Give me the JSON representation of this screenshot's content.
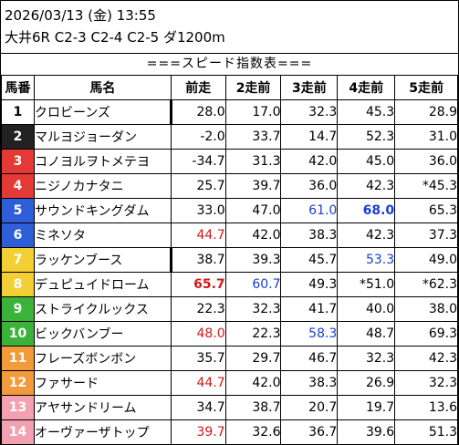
{
  "header": {
    "datetime": "2026/03/13 (金) 13:55",
    "race": "大井6R C2-3 C2-4 C2-5 ダ1200m"
  },
  "subtitle": "===スピード指数表===",
  "columns": [
    "馬番",
    "馬名",
    "前走",
    "2走前",
    "3走前",
    "4走前",
    "5走前"
  ],
  "colors": {
    "red_text": "#d11a1a",
    "blue_text": "#1a3fd1"
  },
  "rows": [
    {
      "num": "1",
      "name": "クロビーンズ",
      "bg": "#ffffff",
      "fg": "#000000",
      "sep": true,
      "vals": [
        "28.0",
        "17.0",
        "32.3",
        "45.3",
        "28.9"
      ],
      "styles": [
        "",
        "",
        "",
        "",
        ""
      ]
    },
    {
      "num": "2",
      "name": "マルヨジョーダン",
      "bg": "#222222",
      "fg": "#ffffff",
      "sep": false,
      "vals": [
        "-2.0",
        "33.7",
        "14.7",
        "52.3",
        "31.0"
      ],
      "styles": [
        "",
        "",
        "",
        "",
        ""
      ]
    },
    {
      "num": "3",
      "name": "コノヨルヲトメテヨ",
      "bg": "#e53935",
      "fg": "#ffffff",
      "sep": false,
      "vals": [
        "-34.7",
        "31.3",
        "42.0",
        "45.0",
        "36.0"
      ],
      "styles": [
        "",
        "",
        "",
        "",
        ""
      ]
    },
    {
      "num": "4",
      "name": "ニジノカナタニ",
      "bg": "#e53935",
      "fg": "#ffffff",
      "sep": false,
      "vals": [
        "25.7",
        "39.7",
        "36.0",
        "42.3",
        "*45.3"
      ],
      "styles": [
        "",
        "",
        "",
        "",
        ""
      ]
    },
    {
      "num": "5",
      "name": "サウンドキングダム",
      "bg": "#2f5fd8",
      "fg": "#ffffff",
      "sep": false,
      "vals": [
        "33.0",
        "47.0",
        "61.0",
        "68.0",
        "65.3"
      ],
      "styles": [
        "",
        "",
        "blue",
        "blue bold",
        ""
      ]
    },
    {
      "num": "6",
      "name": "ミネソタ",
      "bg": "#2f5fd8",
      "fg": "#ffffff",
      "sep": false,
      "vals": [
        "44.7",
        "42.0",
        "38.3",
        "42.3",
        "37.3"
      ],
      "styles": [
        "red",
        "",
        "",
        "",
        ""
      ]
    },
    {
      "num": "7",
      "name": "ラッケンブース",
      "bg": "#f2d033",
      "fg": "#ffffff",
      "sep": true,
      "vals": [
        "38.7",
        "39.3",
        "45.7",
        "53.3",
        "49.0"
      ],
      "styles": [
        "",
        "",
        "",
        "blue",
        ""
      ]
    },
    {
      "num": "8",
      "name": "デュピュイドローム",
      "bg": "#f2d033",
      "fg": "#ffffff",
      "sep": false,
      "vals": [
        "65.7",
        "60.7",
        "49.3",
        "*51.0",
        "*62.3"
      ],
      "styles": [
        "red bold",
        "blue",
        "",
        "",
        ""
      ]
    },
    {
      "num": "9",
      "name": "ストライクルックス",
      "bg": "#3bb33b",
      "fg": "#ffffff",
      "sep": false,
      "vals": [
        "22.3",
        "32.3",
        "41.7",
        "40.0",
        "38.0"
      ],
      "styles": [
        "",
        "",
        "",
        "",
        ""
      ]
    },
    {
      "num": "10",
      "name": "ビックバンブー",
      "bg": "#3bb33b",
      "fg": "#ffffff",
      "sep": false,
      "vals": [
        "48.0",
        "22.3",
        "58.3",
        "48.7",
        "69.3"
      ],
      "styles": [
        "red",
        "",
        "blue",
        "",
        ""
      ]
    },
    {
      "num": "11",
      "name": "フレーズボンボン",
      "bg": "#f39a3a",
      "fg": "#ffffff",
      "sep": false,
      "vals": [
        "35.7",
        "29.7",
        "46.7",
        "32.3",
        "42.3"
      ],
      "styles": [
        "",
        "",
        "",
        "",
        ""
      ]
    },
    {
      "num": "12",
      "name": "ファサード",
      "bg": "#f39a3a",
      "fg": "#ffffff",
      "sep": false,
      "vals": [
        "44.7",
        "42.0",
        "38.3",
        "26.9",
        "32.3"
      ],
      "styles": [
        "red",
        "",
        "",
        "",
        ""
      ]
    },
    {
      "num": "13",
      "name": "アヤサンドリーム",
      "bg": "#f3a0b0",
      "fg": "#ffffff",
      "sep": false,
      "vals": [
        "34.7",
        "38.7",
        "20.7",
        "19.7",
        "13.6"
      ],
      "styles": [
        "",
        "",
        "",
        "",
        ""
      ]
    },
    {
      "num": "14",
      "name": "オーヴァーザトップ",
      "bg": "#f3a0b0",
      "fg": "#ffffff",
      "sep": false,
      "vals": [
        "39.7",
        "32.6",
        "36.7",
        "39.6",
        "51.3"
      ],
      "styles": [
        "red",
        "",
        "",
        "",
        ""
      ]
    }
  ]
}
